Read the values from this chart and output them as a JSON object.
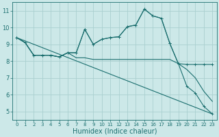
{
  "background_color": "#cce8e8",
  "grid_color": "#aad0d0",
  "line_color": "#1a6e6e",
  "xlabel": "Humidex (Indice chaleur)",
  "xlabel_fontsize": 7,
  "tick_fontsize": 6,
  "yticks": [
    5,
    6,
    7,
    8,
    9,
    10,
    11
  ],
  "ylim": [
    4.5,
    11.5
  ],
  "xlim": [
    -0.5,
    23.5
  ],
  "xticks": [
    0,
    1,
    2,
    3,
    4,
    5,
    6,
    7,
    8,
    9,
    10,
    11,
    12,
    13,
    14,
    15,
    16,
    17,
    18,
    19,
    20,
    21,
    22,
    23
  ],
  "line1_x": [
    0,
    1,
    2,
    3,
    4,
    5,
    6,
    7,
    8,
    9,
    10,
    11,
    12,
    13,
    14,
    15,
    16,
    17,
    18,
    19,
    20,
    21,
    22,
    23
  ],
  "line1_y": [
    9.4,
    9.1,
    8.35,
    8.35,
    8.35,
    8.25,
    8.5,
    8.5,
    9.9,
    9.0,
    9.3,
    9.4,
    9.45,
    10.05,
    10.15,
    11.1,
    10.7,
    10.55,
    9.05,
    7.85,
    7.8,
    7.8,
    7.8,
    7.8
  ],
  "line2_x": [
    0,
    1,
    2,
    3,
    4,
    5,
    6,
    7,
    8,
    9,
    10,
    11,
    12,
    13,
    14,
    15,
    16,
    17,
    18,
    19,
    20,
    21,
    22,
    23
  ],
  "line2_y": [
    9.4,
    9.1,
    8.35,
    8.35,
    8.35,
    8.25,
    8.5,
    8.5,
    9.9,
    9.0,
    9.3,
    9.4,
    9.45,
    10.05,
    10.15,
    11.1,
    10.7,
    10.55,
    9.05,
    7.85,
    6.5,
    6.1,
    5.3,
    4.85
  ],
  "line3_x": [
    0,
    1,
    2,
    3,
    4,
    5,
    6,
    7,
    8,
    9,
    10,
    11,
    12,
    13,
    14,
    15,
    16,
    17,
    18,
    19,
    20,
    21,
    22,
    23
  ],
  "line3_y": [
    9.4,
    9.1,
    8.35,
    8.35,
    8.35,
    8.25,
    8.5,
    8.2,
    8.2,
    8.1,
    8.1,
    8.1,
    8.1,
    8.1,
    8.1,
    8.1,
    8.1,
    8.1,
    8.1,
    7.85,
    7.5,
    7.0,
    6.2,
    5.6
  ],
  "line4_x": [
    0,
    23
  ],
  "line4_y": [
    9.4,
    4.85
  ]
}
